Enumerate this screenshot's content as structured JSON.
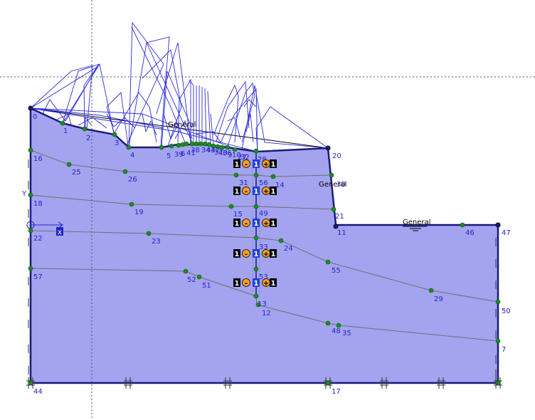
{
  "colors": {
    "soil_fill": "#A3A3F0",
    "boundary": "#1A1A7A",
    "layer_line": "#707070",
    "node_green": "#1E8C1E",
    "label_blue": "#2424C8",
    "load_lines": "#2B2BD8",
    "anchor_bg": "#000000",
    "anchor_orange": "#F2A020",
    "anchor_blue": "#2040E0"
  },
  "axes": {
    "x_label": "x",
    "y_label": "Y"
  },
  "phreatic_labels": [
    "General",
    "General",
    "General"
  ],
  "anchor_rows": [
    {
      "left": "1",
      "mid1": "-",
      "center": "1",
      "mid2": "+",
      "right": "1"
    },
    {
      "left": "1",
      "mid1": "-",
      "center": "1",
      "mid2": "+",
      "right": "1"
    },
    {
      "left": "1",
      "mid1": "-",
      "center": "1",
      "mid2": "+",
      "right": "1"
    },
    {
      "left": "1",
      "mid1": "-",
      "center": "1",
      "mid2": "+",
      "right": "1"
    },
    {
      "left": "1",
      "mid1": "-",
      "center": "1",
      "mid2": "+",
      "right": "1"
    }
  ],
  "node_labels": [
    "0",
    "1",
    "2",
    "3",
    "4",
    "5",
    "39",
    "6",
    "41",
    "38",
    "34",
    "43",
    "42",
    "37",
    "40",
    "36",
    "9",
    "10",
    "27",
    "32",
    "28",
    "20",
    "30",
    "21",
    "11",
    "46",
    "47",
    "16",
    "25",
    "26",
    "18",
    "19",
    "22",
    "23",
    "24",
    "31",
    "56",
    "14",
    "15",
    "49",
    "33",
    "55",
    "29",
    "50",
    "57",
    "52",
    "51",
    "53",
    "13",
    "12",
    "48",
    "35",
    "7",
    "44",
    "17"
  ]
}
